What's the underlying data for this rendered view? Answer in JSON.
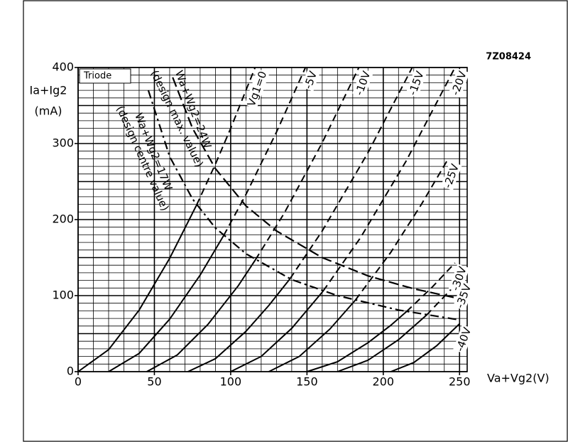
{
  "chart_data": {
    "type": "line",
    "code": "7Z08424",
    "panel_label": "Triode",
    "y_label": [
      "Ia+Ig2",
      "(mA)"
    ],
    "x_label": "Va+Vg2(V)",
    "xlim": [
      0,
      255
    ],
    "ylim": [
      0,
      400
    ],
    "xticks": [
      0,
      50,
      100,
      150,
      200,
      250
    ],
    "yticks": [
      0,
      100,
      200,
      300,
      400
    ],
    "minor_xticks": [
      0,
      10,
      20,
      30,
      40,
      50,
      60,
      70,
      80,
      90,
      100,
      110,
      120,
      130,
      140,
      150,
      160,
      170,
      180,
      190,
      200,
      210,
      220,
      230,
      240,
      250
    ],
    "minor_yticks": [
      0,
      10,
      20,
      30,
      40,
      50,
      60,
      70,
      80,
      90,
      100,
      110,
      120,
      130,
      140,
      150,
      160,
      170,
      180,
      190,
      200,
      210,
      220,
      230,
      240,
      250,
      260,
      270,
      280,
      290,
      300,
      310,
      320,
      330,
      340,
      350,
      360,
      370,
      380,
      390,
      400
    ],
    "grid": true,
    "series": [
      {
        "name": "Vg1=0",
        "color": "#000000",
        "x": [
          0,
          20,
          40,
          60,
          77.6
        ],
        "values": [
          0,
          29,
          81,
          149,
          219
        ],
        "dashed_x": [
          77.6,
          90,
          100,
          116
        ],
        "dashed_values": [
          219,
          273,
          320,
          400
        ]
      },
      {
        "name": "-5V",
        "color": "#000000",
        "x": [
          20,
          40,
          60,
          80,
          95.4
        ],
        "values": [
          0,
          24,
          69,
          127,
          179
        ],
        "dashed_x": [
          95.4,
          110,
          130,
          149
        ],
        "dashed_values": [
          179,
          233,
          315,
          400
        ]
      },
      {
        "name": "-10V",
        "color": "#000000",
        "x": [
          45,
          65,
          85,
          105,
          116.2
        ],
        "values": [
          0,
          22,
          62,
          113,
          147
        ],
        "dashed_x": [
          116.2,
          135,
          160,
          184
        ],
        "dashed_values": [
          147,
          208,
          301,
          400
        ]
      },
      {
        "name": "-15V",
        "color": "#000000",
        "x": [
          72,
          90,
          110,
          125,
          138.8
        ],
        "values": [
          0,
          17,
          53,
          87,
          122
        ],
        "dashed_x": [
          138.8,
          160,
          190,
          219
        ],
        "dashed_values": [
          122,
          185,
          288,
          400
        ]
      },
      {
        "name": "-20V",
        "color": "#000000",
        "x": [
          100,
          120,
          140,
          160.6
        ],
        "values": [
          0,
          20,
          57,
          106
        ],
        "dashed_x": [
          160.6,
          185,
          215,
          247
        ],
        "dashed_values": [
          106,
          176,
          277,
          400
        ]
      },
      {
        "name": "-25V",
        "color": "#000000",
        "x": [
          125,
          145,
          165,
          181.7
        ],
        "values": [
          0,
          20,
          56,
          94
        ],
        "dashed_x": [
          181.7,
          205,
          225,
          242
        ],
        "dashed_values": [
          94,
          157,
          220,
          278
        ]
      },
      {
        "name": "-30V",
        "color": "#000000",
        "x": [
          150,
          170,
          190,
          205,
          215.2
        ],
        "values": [
          0,
          13,
          38,
          61,
          79
        ],
        "dashed_x": [
          215.2,
          232,
          247
        ],
        "dashed_values": [
          79,
          111,
          143
        ]
      },
      {
        "name": "-35V",
        "color": "#000000",
        "x": [
          170,
          190,
          210,
          228.2
        ],
        "values": [
          0,
          15,
          42,
          74
        ],
        "dashed_x": [
          228.2,
          250
        ],
        "dashed_values": [
          74,
          120
        ]
      },
      {
        "name": "-40V",
        "color": "#000000",
        "x": [
          205,
          220,
          235,
          250
        ],
        "values": [
          0,
          12,
          34,
          63
        ]
      }
    ],
    "power_lines": [
      {
        "label": [
          "Wa+Wg2=24W",
          "(design max. value)"
        ],
        "color": "#000000",
        "dash": "14,6",
        "x": [
          62,
          75,
          90,
          110,
          130,
          160,
          190,
          220,
          250
        ],
        "values": [
          387,
          320,
          267,
          218,
          185,
          150,
          126,
          109,
          96
        ]
      },
      {
        "label": [
          "Wa+Wg2=17W",
          "(design centre value)"
        ],
        "color": "#000000",
        "dash": "12,5,3,5",
        "x": [
          46,
          60,
          75,
          90,
          110,
          140,
          170,
          210,
          250
        ],
        "values": [
          370,
          283,
          227,
          189,
          155,
          121,
          100,
          81,
          68
        ]
      }
    ]
  }
}
